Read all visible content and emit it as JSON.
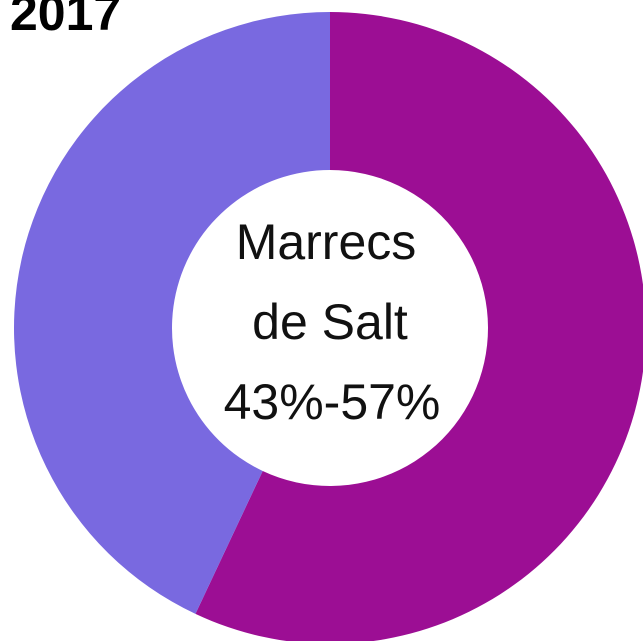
{
  "chart_data": {
    "type": "pie",
    "title": "2017",
    "center_label": [
      "Marrecs",
      "de Salt"
    ],
    "center_value_label": "43%-57%",
    "series": [
      {
        "color": "#9c0e94",
        "values": [
          57
        ]
      },
      {
        "color": "#7969e0",
        "values": [
          43
        ]
      }
    ],
    "donut": true
  }
}
